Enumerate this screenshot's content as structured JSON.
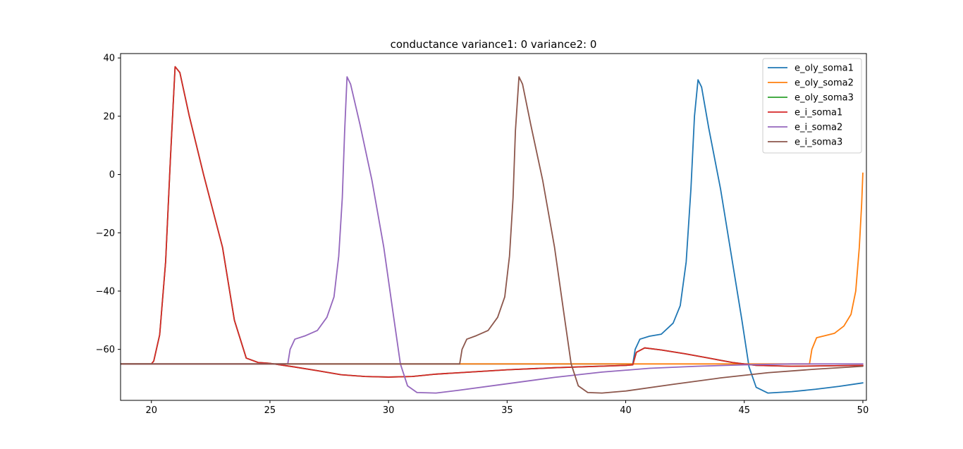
{
  "chart_data": {
    "type": "line",
    "title": "conductance variance1: 0 variance2: 0",
    "xlabel": "",
    "ylabel": "",
    "xlim": [
      18.7,
      50.15
    ],
    "ylim": [
      -77.5,
      41.5
    ],
    "xticks": [
      20,
      25,
      30,
      35,
      40,
      45,
      50
    ],
    "yticks": [
      -60,
      -40,
      -20,
      0,
      20,
      40
    ],
    "grid": false,
    "legend_position": "top-right",
    "series": [
      {
        "name": "e_oly_soma1",
        "color": "#1f77b4",
        "points": [
          [
            18.7,
            -65
          ],
          [
            40.3,
            -65
          ],
          [
            40.4,
            -60
          ],
          [
            40.6,
            -56.5
          ],
          [
            41,
            -55.5
          ],
          [
            41.5,
            -54.8
          ],
          [
            42,
            -51
          ],
          [
            42.3,
            -45
          ],
          [
            42.55,
            -30
          ],
          [
            42.75,
            -5
          ],
          [
            42.9,
            20
          ],
          [
            43.05,
            32.5
          ],
          [
            43.2,
            30
          ],
          [
            43.5,
            16
          ],
          [
            44,
            -5
          ],
          [
            44.5,
            -30
          ],
          [
            44.9,
            -50
          ],
          [
            45.2,
            -66
          ],
          [
            45.5,
            -73
          ],
          [
            46,
            -75
          ],
          [
            47,
            -74.5
          ],
          [
            48,
            -73.7
          ],
          [
            49,
            -72.7
          ],
          [
            50,
            -71.5
          ]
        ]
      },
      {
        "name": "e_oly_soma2",
        "color": "#ff7f0e",
        "points": [
          [
            18.7,
            -65
          ],
          [
            47.75,
            -65
          ],
          [
            47.85,
            -60
          ],
          [
            48.05,
            -56
          ],
          [
            48.4,
            -55.3
          ],
          [
            48.8,
            -54.5
          ],
          [
            49.2,
            -52
          ],
          [
            49.5,
            -48
          ],
          [
            49.7,
            -40
          ],
          [
            49.85,
            -25
          ],
          [
            49.95,
            -10
          ],
          [
            50,
            0.5
          ]
        ]
      },
      {
        "name": "e_oly_soma3",
        "color": "#2ca02c",
        "points": [
          [
            18.7,
            -65
          ],
          [
            20,
            -65
          ],
          [
            20.1,
            -64
          ],
          [
            20.35,
            -55
          ],
          [
            20.6,
            -30
          ],
          [
            20.8,
            5
          ],
          [
            21,
            37
          ],
          [
            21.2,
            35
          ],
          [
            21.6,
            20
          ],
          [
            22.2,
            0
          ],
          [
            23,
            -25
          ],
          [
            23.5,
            -50
          ],
          [
            24,
            -63
          ],
          [
            24.5,
            -64.5
          ],
          [
            25,
            -64.8
          ],
          [
            26,
            -66
          ],
          [
            27,
            -67.3
          ],
          [
            28,
            -68.7
          ],
          [
            29,
            -69.3
          ],
          [
            30,
            -69.5
          ],
          [
            31,
            -69.3
          ],
          [
            32,
            -68.5
          ],
          [
            33,
            -68
          ],
          [
            35,
            -67
          ],
          [
            37,
            -66.3
          ],
          [
            40,
            -65.5
          ],
          [
            40.3,
            -65.3
          ],
          [
            40.45,
            -61
          ],
          [
            40.8,
            -59.5
          ],
          [
            41.5,
            -60.2
          ],
          [
            42.5,
            -61.5
          ],
          [
            43.5,
            -63
          ],
          [
            44.5,
            -64.5
          ],
          [
            45.5,
            -65.5
          ],
          [
            47,
            -65.8
          ],
          [
            50,
            -65.5
          ]
        ]
      },
      {
        "name": "e_i_soma1",
        "color": "#d62728",
        "points": [
          [
            18.7,
            -65
          ],
          [
            20,
            -65
          ],
          [
            20.1,
            -64
          ],
          [
            20.35,
            -55
          ],
          [
            20.6,
            -30
          ],
          [
            20.8,
            5
          ],
          [
            21,
            37
          ],
          [
            21.2,
            35
          ],
          [
            21.6,
            20
          ],
          [
            22.2,
            0
          ],
          [
            23,
            -25
          ],
          [
            23.5,
            -50
          ],
          [
            24,
            -63
          ],
          [
            24.5,
            -64.5
          ],
          [
            25,
            -64.8
          ],
          [
            26,
            -66
          ],
          [
            27,
            -67.3
          ],
          [
            28,
            -68.7
          ],
          [
            29,
            -69.3
          ],
          [
            30,
            -69.5
          ],
          [
            31,
            -69.3
          ],
          [
            32,
            -68.5
          ],
          [
            33,
            -68
          ],
          [
            35,
            -67
          ],
          [
            37,
            -66.3
          ],
          [
            40,
            -65.5
          ],
          [
            40.3,
            -65.3
          ],
          [
            40.45,
            -61
          ],
          [
            40.8,
            -59.5
          ],
          [
            41.5,
            -60.2
          ],
          [
            42.5,
            -61.5
          ],
          [
            43.5,
            -63
          ],
          [
            44.5,
            -64.5
          ],
          [
            45.5,
            -65.5
          ],
          [
            47,
            -65.8
          ],
          [
            50,
            -65.5
          ]
        ]
      },
      {
        "name": "e_i_soma2",
        "color": "#9467bd",
        "points": [
          [
            18.7,
            -65
          ],
          [
            25.75,
            -65
          ],
          [
            25.85,
            -60
          ],
          [
            26.05,
            -56.5
          ],
          [
            26.5,
            -55.3
          ],
          [
            27,
            -53.5
          ],
          [
            27.4,
            -49
          ],
          [
            27.7,
            -42
          ],
          [
            27.9,
            -28
          ],
          [
            28.05,
            -8
          ],
          [
            28.15,
            15
          ],
          [
            28.25,
            33.5
          ],
          [
            28.4,
            31
          ],
          [
            28.8,
            17
          ],
          [
            29.3,
            -2
          ],
          [
            29.8,
            -25
          ],
          [
            30.2,
            -48
          ],
          [
            30.5,
            -65
          ],
          [
            30.8,
            -72.5
          ],
          [
            31.2,
            -74.8
          ],
          [
            32,
            -75
          ],
          [
            33,
            -74
          ],
          [
            35,
            -71.8
          ],
          [
            37,
            -69.6
          ],
          [
            39,
            -67.8
          ],
          [
            41,
            -66.5
          ],
          [
            43,
            -65.8
          ],
          [
            45,
            -65.3
          ],
          [
            47,
            -65
          ],
          [
            50,
            -65
          ]
        ]
      },
      {
        "name": "e_i_soma3",
        "color": "#8c564b",
        "points": [
          [
            18.7,
            -65
          ],
          [
            33,
            -65
          ],
          [
            33.1,
            -60
          ],
          [
            33.3,
            -56.5
          ],
          [
            33.7,
            -55.3
          ],
          [
            34.2,
            -53.5
          ],
          [
            34.6,
            -49
          ],
          [
            34.9,
            -42
          ],
          [
            35.1,
            -28
          ],
          [
            35.25,
            -8
          ],
          [
            35.35,
            15
          ],
          [
            35.5,
            33.5
          ],
          [
            35.65,
            31
          ],
          [
            36,
            17
          ],
          [
            36.5,
            -2
          ],
          [
            37,
            -25
          ],
          [
            37.4,
            -48
          ],
          [
            37.7,
            -65
          ],
          [
            38,
            -72.5
          ],
          [
            38.4,
            -74.8
          ],
          [
            39,
            -75
          ],
          [
            40,
            -74.3
          ],
          [
            42,
            -72
          ],
          [
            44,
            -69.8
          ],
          [
            46,
            -68
          ],
          [
            48,
            -66.8
          ],
          [
            50,
            -65.8
          ]
        ]
      }
    ]
  }
}
